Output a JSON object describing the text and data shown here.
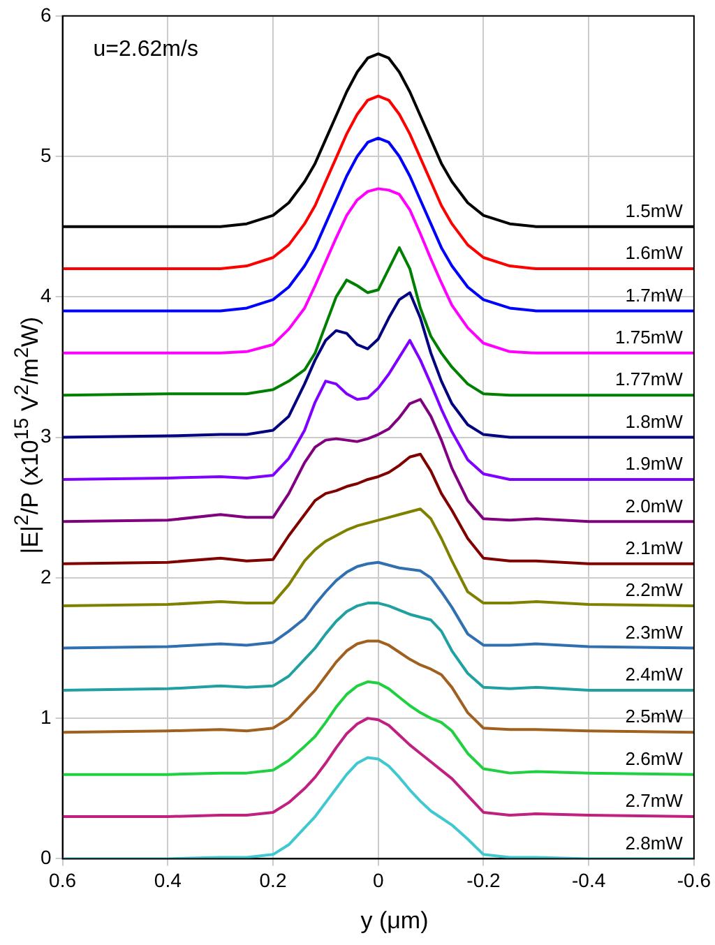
{
  "chart_data": {
    "type": "line",
    "xlabel": "y (μm)",
    "ylabel": "|E|$^{2}$/P (x10$^{15}$ V$^{2}$/m$^{2}$W)",
    "annotations": [
      "u=2.62m/s"
    ],
    "x": [
      0.6,
      0.4,
      0.3,
      0.25,
      0.2,
      0.17,
      0.14,
      0.12,
      0.1,
      0.08,
      0.06,
      0.04,
      0.02,
      0,
      -0.02,
      -0.04,
      -0.06,
      -0.08,
      -0.1,
      -0.12,
      -0.14,
      -0.17,
      -0.2,
      -0.25,
      -0.3,
      -0.4,
      -0.6
    ],
    "xlim": [
      0.6,
      -0.6
    ],
    "xticks": [
      0.6,
      0.4,
      0.2,
      0,
      -0.2,
      -0.4,
      -0.6
    ],
    "ylim": [
      0,
      6
    ],
    "yticks": [
      0,
      1,
      2,
      3,
      4,
      5,
      6
    ],
    "grid": true,
    "marker": "none",
    "line_style": "solid",
    "series": [
      {
        "name": "1.5mW",
        "color": "#000000",
        "values": [
          4.5,
          4.5,
          4.5,
          4.52,
          4.58,
          4.67,
          4.82,
          4.95,
          5.12,
          5.29,
          5.46,
          5.6,
          5.7,
          5.73,
          5.7,
          5.6,
          5.46,
          5.29,
          5.12,
          4.95,
          4.82,
          4.67,
          4.58,
          4.52,
          4.5,
          4.5,
          4.5
        ]
      },
      {
        "name": "1.6mW",
        "color": "#ff0000",
        "values": [
          4.2,
          4.2,
          4.2,
          4.22,
          4.28,
          4.37,
          4.52,
          4.65,
          4.82,
          4.99,
          5.16,
          5.3,
          5.4,
          5.43,
          5.4,
          5.3,
          5.16,
          4.99,
          4.82,
          4.65,
          4.52,
          4.37,
          4.28,
          4.22,
          4.2,
          4.2,
          4.2
        ]
      },
      {
        "name": "1.7mW",
        "color": "#0000ff",
        "values": [
          3.9,
          3.9,
          3.9,
          3.92,
          3.98,
          4.07,
          4.22,
          4.35,
          4.52,
          4.69,
          4.86,
          5.0,
          5.1,
          5.13,
          5.1,
          5.0,
          4.86,
          4.69,
          4.52,
          4.35,
          4.22,
          4.07,
          3.98,
          3.92,
          3.9,
          3.9,
          3.9
        ]
      },
      {
        "name": "1.75mW",
        "color": "#ff00ff",
        "values": [
          3.6,
          3.6,
          3.6,
          3.61,
          3.66,
          3.77,
          3.92,
          4.08,
          4.25,
          4.42,
          4.58,
          4.69,
          4.75,
          4.77,
          4.76,
          4.73,
          4.62,
          4.45,
          4.27,
          4.1,
          3.94,
          3.78,
          3.67,
          3.61,
          3.6,
          3.6,
          3.6
        ]
      },
      {
        "name": "1.77mW",
        "color": "#008000",
        "values": [
          3.3,
          3.31,
          3.31,
          3.31,
          3.34,
          3.4,
          3.48,
          3.6,
          3.8,
          4.0,
          4.12,
          4.08,
          4.03,
          4.05,
          4.2,
          4.35,
          4.2,
          3.92,
          3.72,
          3.6,
          3.5,
          3.38,
          3.31,
          3.3,
          3.3,
          3.3,
          3.3
        ]
      },
      {
        "name": "1.8mW",
        "color": "#000080",
        "values": [
          3.0,
          3.01,
          3.02,
          3.02,
          3.05,
          3.15,
          3.38,
          3.55,
          3.69,
          3.76,
          3.74,
          3.66,
          3.63,
          3.7,
          3.85,
          3.98,
          4.03,
          3.85,
          3.6,
          3.4,
          3.24,
          3.09,
          3.02,
          3.0,
          3.0,
          3.0,
          3.0
        ]
      },
      {
        "name": "1.9mW",
        "color": "#8000ff",
        "values": [
          2.7,
          2.71,
          2.72,
          2.71,
          2.73,
          2.85,
          3.05,
          3.25,
          3.4,
          3.38,
          3.31,
          3.27,
          3.28,
          3.35,
          3.45,
          3.57,
          3.69,
          3.55,
          3.38,
          3.2,
          3.04,
          2.84,
          2.74,
          2.7,
          2.7,
          2.7,
          2.7
        ]
      },
      {
        "name": "2.0mW",
        "color": "#800080",
        "values": [
          2.4,
          2.41,
          2.45,
          2.43,
          2.43,
          2.6,
          2.82,
          2.93,
          2.98,
          2.99,
          2.98,
          2.97,
          2.99,
          3.02,
          3.06,
          3.14,
          3.24,
          3.27,
          3.15,
          2.98,
          2.78,
          2.55,
          2.42,
          2.41,
          2.42,
          2.4,
          2.4
        ]
      },
      {
        "name": "2.1mW",
        "color": "#800000",
        "values": [
          2.1,
          2.11,
          2.14,
          2.12,
          2.13,
          2.3,
          2.45,
          2.55,
          2.6,
          2.62,
          2.65,
          2.67,
          2.7,
          2.72,
          2.75,
          2.8,
          2.86,
          2.88,
          2.76,
          2.6,
          2.48,
          2.28,
          2.14,
          2.12,
          2.12,
          2.1,
          2.1
        ]
      },
      {
        "name": "2.2mW",
        "color": "#808000",
        "values": [
          1.8,
          1.81,
          1.83,
          1.82,
          1.82,
          1.95,
          2.12,
          2.2,
          2.26,
          2.3,
          2.34,
          2.37,
          2.39,
          2.41,
          2.43,
          2.45,
          2.47,
          2.49,
          2.42,
          2.28,
          2.12,
          1.9,
          1.82,
          1.82,
          1.83,
          1.81,
          1.8
        ]
      },
      {
        "name": "2.3mW",
        "color": "#3070b0",
        "values": [
          1.5,
          1.51,
          1.53,
          1.52,
          1.54,
          1.62,
          1.71,
          1.81,
          1.9,
          1.98,
          2.04,
          2.08,
          2.1,
          2.11,
          2.09,
          2.07,
          2.06,
          2.05,
          2.0,
          1.9,
          1.79,
          1.6,
          1.52,
          1.52,
          1.53,
          1.51,
          1.5
        ]
      },
      {
        "name": "2.4mW",
        "color": "#20a0a0",
        "values": [
          1.2,
          1.21,
          1.23,
          1.22,
          1.23,
          1.3,
          1.42,
          1.5,
          1.6,
          1.69,
          1.76,
          1.8,
          1.82,
          1.82,
          1.8,
          1.77,
          1.74,
          1.72,
          1.7,
          1.62,
          1.48,
          1.32,
          1.22,
          1.21,
          1.22,
          1.2,
          1.2
        ]
      },
      {
        "name": "2.5mW",
        "color": "#a06020",
        "values": [
          0.9,
          0.91,
          0.92,
          0.91,
          0.93,
          1.0,
          1.12,
          1.2,
          1.3,
          1.4,
          1.48,
          1.53,
          1.55,
          1.55,
          1.52,
          1.47,
          1.42,
          1.38,
          1.35,
          1.31,
          1.22,
          1.04,
          0.93,
          0.92,
          0.92,
          0.91,
          0.9
        ]
      },
      {
        "name": "2.6mW",
        "color": "#20d040",
        "values": [
          0.6,
          0.6,
          0.61,
          0.61,
          0.63,
          0.7,
          0.8,
          0.87,
          0.97,
          1.08,
          1.17,
          1.23,
          1.26,
          1.25,
          1.21,
          1.15,
          1.09,
          1.04,
          1.0,
          0.97,
          0.91,
          0.75,
          0.64,
          0.61,
          0.62,
          0.61,
          0.6
        ]
      },
      {
        "name": "2.7mW",
        "color": "#c02080",
        "values": [
          0.3,
          0.3,
          0.31,
          0.31,
          0.33,
          0.4,
          0.5,
          0.58,
          0.68,
          0.79,
          0.89,
          0.96,
          1.0,
          0.99,
          0.95,
          0.88,
          0.81,
          0.75,
          0.69,
          0.63,
          0.57,
          0.45,
          0.33,
          0.31,
          0.32,
          0.31,
          0.3
        ]
      },
      {
        "name": "2.8mW",
        "color": "#40c8d0",
        "values": [
          0,
          0,
          0.01,
          0.01,
          0.03,
          0.1,
          0.22,
          0.3,
          0.4,
          0.5,
          0.6,
          0.68,
          0.72,
          0.71,
          0.66,
          0.58,
          0.49,
          0.41,
          0.34,
          0.29,
          0.24,
          0.14,
          0.03,
          0.01,
          0.01,
          0,
          0
        ]
      }
    ]
  }
}
